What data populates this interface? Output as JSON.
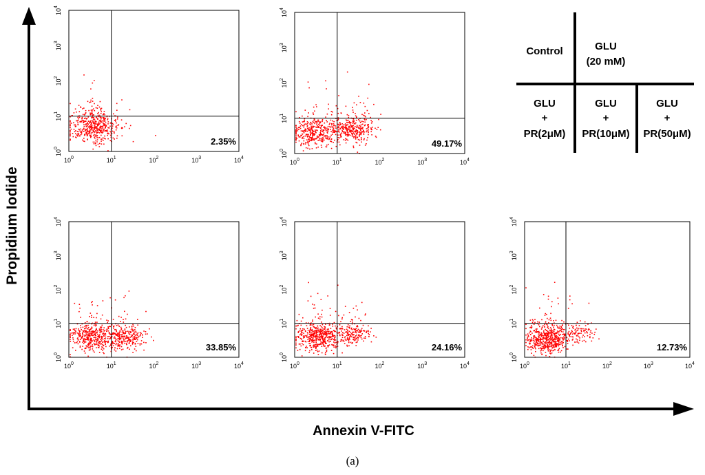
{
  "chart_data": {
    "type": "scatter",
    "figure_label": "(a)",
    "x_axis_title": "Annexin V-FITC",
    "y_axis_title": "Propidium Iodide",
    "axis_scale": "log",
    "axis_range": [
      1,
      10000
    ],
    "tick_labels": [
      {
        "base": "10",
        "exp": "0"
      },
      {
        "base": "10",
        "exp": "1"
      },
      {
        "base": "10",
        "exp": "2"
      },
      {
        "base": "10",
        "exp": "3"
      },
      {
        "base": "10",
        "exp": "4"
      }
    ],
    "quadrant_gate": {
      "x": 10,
      "y": 10
    },
    "dot_color": "#ff0000",
    "panels": [
      {
        "id": "control",
        "percentage": "2.35%",
        "clusters": [
          {
            "cx": 4,
            "cy": 5,
            "spread": 0.3,
            "n": 500
          }
        ]
      },
      {
        "id": "glu",
        "percentage": "49.17%",
        "clusters": [
          {
            "cx": 3,
            "cy": 4,
            "spread": 0.28,
            "n": 380
          },
          {
            "cx": 22,
            "cy": 5,
            "spread": 0.25,
            "n": 340
          }
        ]
      },
      {
        "id": "glu-pr2",
        "percentage": "33.85%",
        "clusters": [
          {
            "cx": 3.5,
            "cy": 4,
            "spread": 0.27,
            "n": 420
          },
          {
            "cx": 22,
            "cy": 4,
            "spread": 0.24,
            "n": 280
          }
        ]
      },
      {
        "id": "glu-pr10",
        "percentage": "24.16%",
        "clusters": [
          {
            "cx": 3.5,
            "cy": 4,
            "spread": 0.28,
            "n": 500
          },
          {
            "cx": 22,
            "cy": 5,
            "spread": 0.22,
            "n": 180
          }
        ]
      },
      {
        "id": "glu-pr50",
        "percentage": "12.73%",
        "clusters": [
          {
            "cx": 3.5,
            "cy": 3.5,
            "spread": 0.28,
            "n": 550
          },
          {
            "cx": 20,
            "cy": 5,
            "spread": 0.2,
            "n": 100
          }
        ]
      }
    ],
    "legend": {
      "top": [
        {
          "lines": [
            "Control"
          ]
        },
        {
          "lines": [
            "GLU",
            "(20 mM)"
          ]
        }
      ],
      "bottom": [
        {
          "lines": [
            "GLU",
            "+",
            "PR(2μM)"
          ]
        },
        {
          "lines": [
            "GLU",
            "+",
            "PR(10μM)"
          ]
        },
        {
          "lines": [
            "GLU",
            "+",
            "PR(50μM)"
          ]
        }
      ]
    }
  }
}
